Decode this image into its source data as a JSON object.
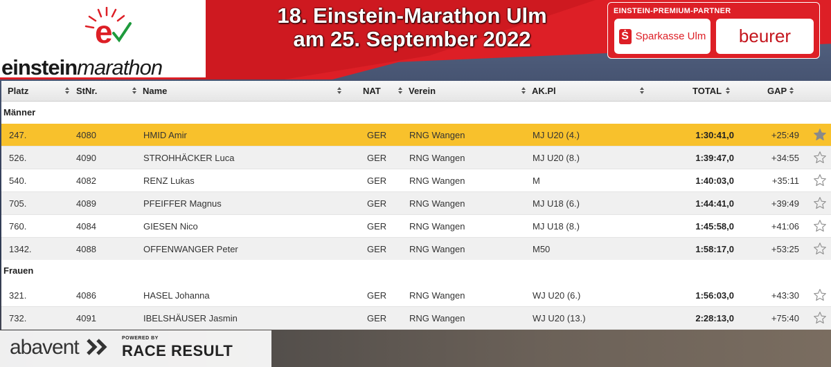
{
  "header": {
    "title_line1": "18. Einstein-Marathon Ulm",
    "title_line2": "am 25. September 2022",
    "logo_part1": "einstein",
    "logo_part2": "marathon",
    "partner_heading": "EINSTEIN-PREMIUM-PARTNER",
    "sponsor1": "Sparkasse Ulm",
    "sponsor1_icon": "Ṡ",
    "sponsor2": "beurer"
  },
  "columns": {
    "platz": "Platz",
    "stnr": "StNr.",
    "name": "Name",
    "nat": "NAT",
    "verein": "Verein",
    "ak": "AK.Pl",
    "total": "TOTAL",
    "gap": "GAP"
  },
  "groups": {
    "men": "Männer",
    "women": "Frauen"
  },
  "men": [
    {
      "platz": "247.",
      "stnr": "4080",
      "name": "HMID Amir",
      "nat": "GER",
      "verein": "RNG Wangen",
      "ak": "MJ U20 (4.)",
      "total": "1:30:41,0",
      "gap": "+25:49"
    },
    {
      "platz": "526.",
      "stnr": "4090",
      "name": "STROHHÄCKER Luca",
      "nat": "GER",
      "verein": "RNG Wangen",
      "ak": "MJ U20 (8.)",
      "total": "1:39:47,0",
      "gap": "+34:55"
    },
    {
      "platz": "540.",
      "stnr": "4082",
      "name": "RENZ Lukas",
      "nat": "GER",
      "verein": "RNG Wangen",
      "ak": "M",
      "total": "1:40:03,0",
      "gap": "+35:11"
    },
    {
      "platz": "705.",
      "stnr": "4089",
      "name": "PFEIFFER Magnus",
      "nat": "GER",
      "verein": "RNG Wangen",
      "ak": "MJ U18 (6.)",
      "total": "1:44:41,0",
      "gap": "+39:49"
    },
    {
      "platz": "760.",
      "stnr": "4084",
      "name": "GIESEN Nico",
      "nat": "GER",
      "verein": "RNG Wangen",
      "ak": "MJ U18 (8.)",
      "total": "1:45:58,0",
      "gap": "+41:06"
    },
    {
      "platz": "1342.",
      "stnr": "4088",
      "name": "OFFENWANGER Peter",
      "nat": "GER",
      "verein": "RNG Wangen",
      "ak": "M50",
      "total": "1:58:17,0",
      "gap": "+53:25"
    }
  ],
  "women": [
    {
      "platz": "321.",
      "stnr": "4086",
      "name": "HASEL Johanna",
      "nat": "GER",
      "verein": "RNG Wangen",
      "ak": "WJ U20 (6.)",
      "total": "1:56:03,0",
      "gap": "+43:30"
    },
    {
      "platz": "732.",
      "stnr": "4091",
      "name": "IBELSHÄUSER Jasmin",
      "nat": "GER",
      "verein": "RNG Wangen",
      "ak": "WJ U20 (13.)",
      "total": "2:28:13,0",
      "gap": "+75:40"
    }
  ],
  "footer": {
    "abavent": "abavent",
    "powered_by": "POWERED BY",
    "raceresult": "RACE RESULT"
  },
  "colors": {
    "brand_red": "#dd1f26",
    "highlight": "#f8c12c",
    "check_green": "#1e9a3c"
  },
  "icons": {
    "favorite": "star-icon",
    "sort": "sort-icon"
  }
}
